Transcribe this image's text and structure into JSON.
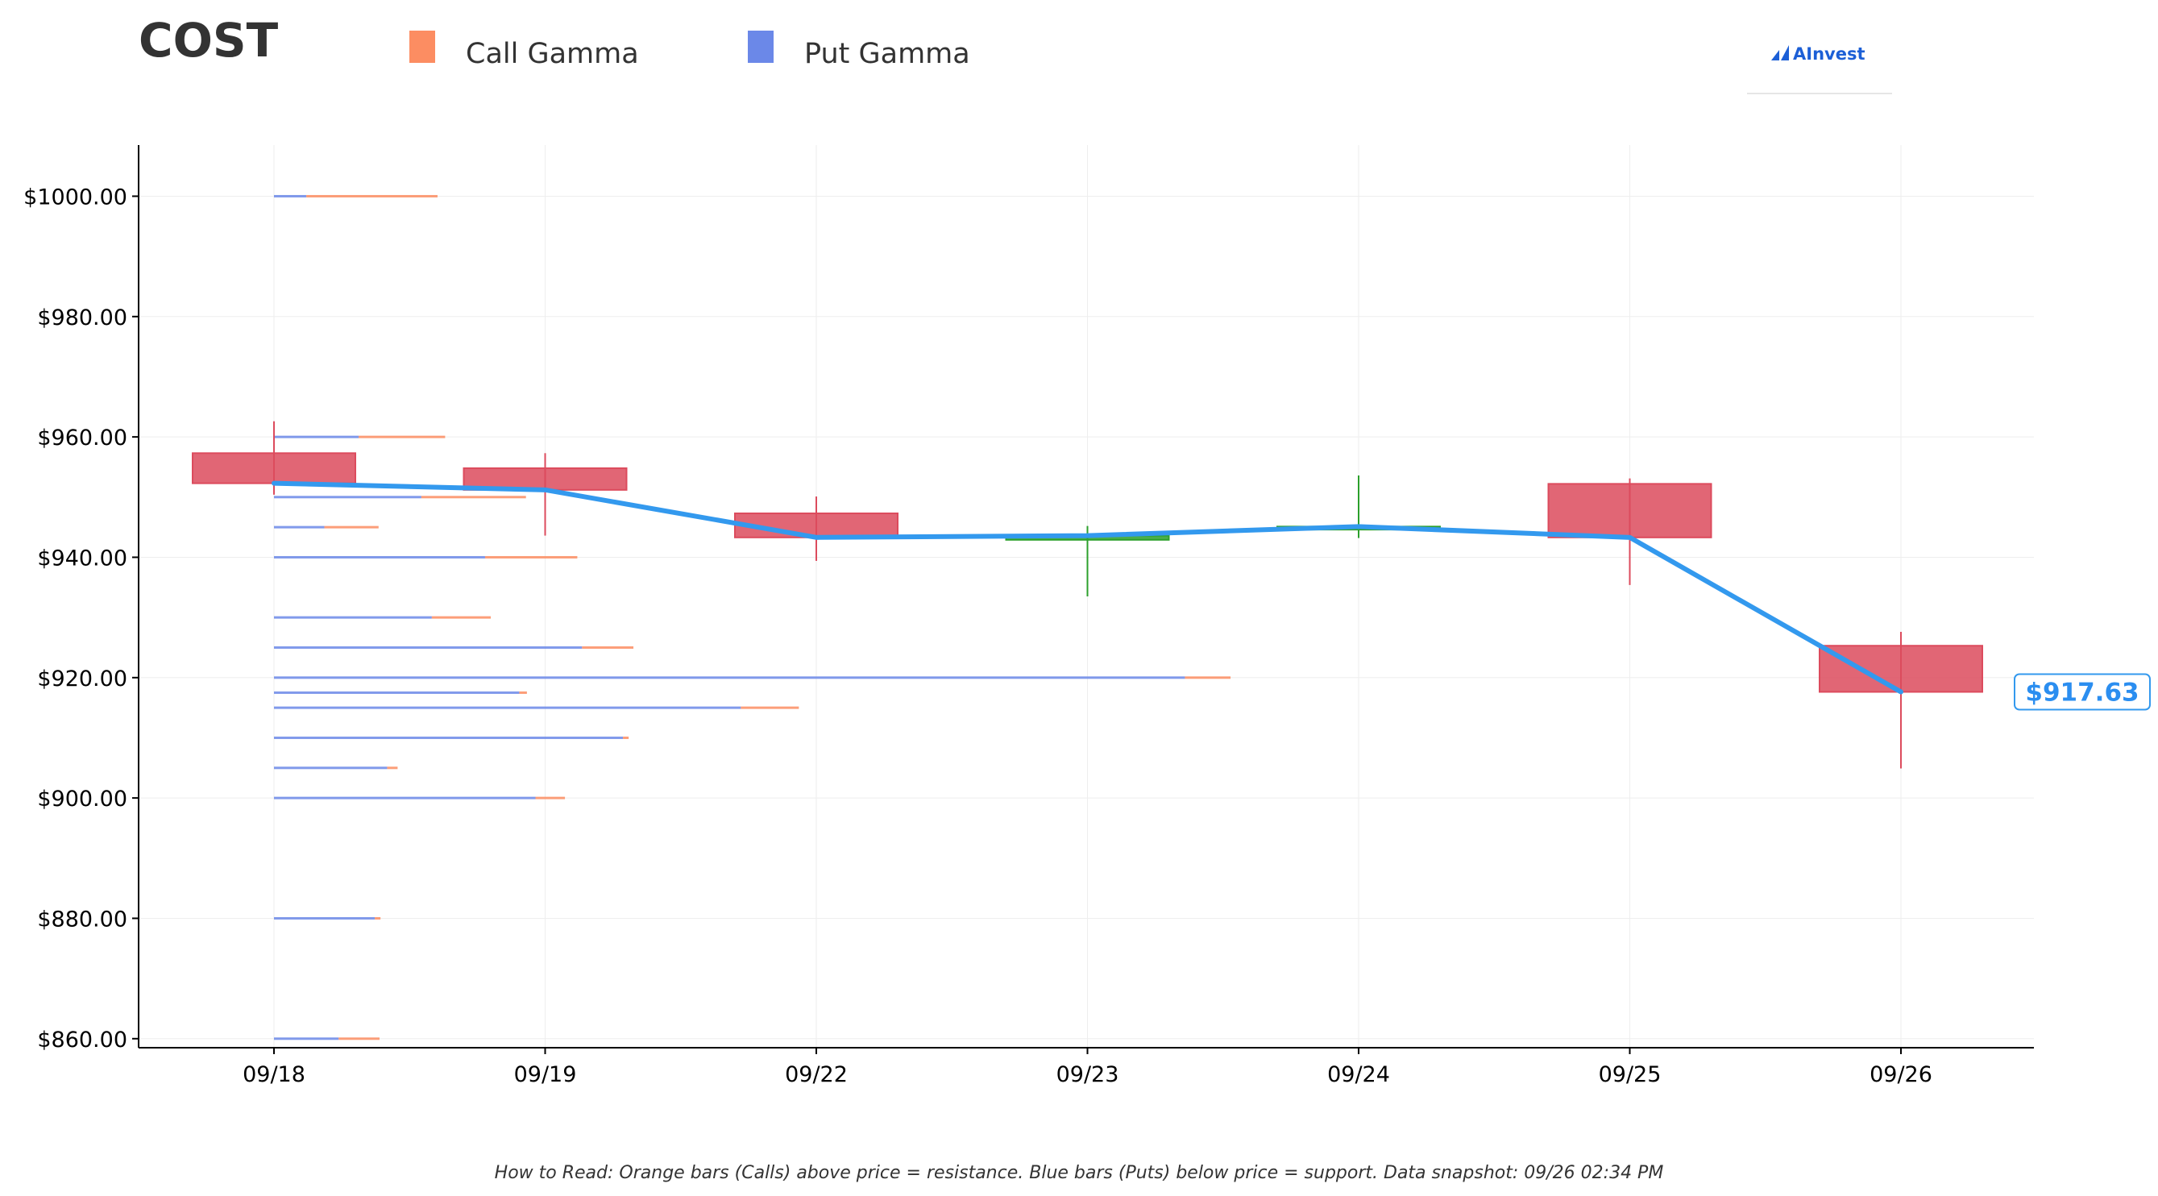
{
  "ticker": "COST",
  "legend": {
    "call_label": "Call Gamma",
    "put_label": "Put Gamma"
  },
  "logo_text": "AInvest",
  "colors": {
    "call": "#fc8d62",
    "put": "#6b88e8",
    "candle_down": "#dc4b5d",
    "candle_up": "#2ca02c",
    "price_line": "#3399ee",
    "price_label": "#2b8ef0",
    "axis": "#000000",
    "grid": "#eeeeee"
  },
  "current_price_label": "$917.63",
  "footnote": "How to Read: Orange bars (Calls) above price = resistance. Blue bars (Puts) below price = support. Data snapshot: 09/26 02:34 PM",
  "chart_data": {
    "type": "candlestick",
    "title": "COST",
    "categories": [
      "09/18",
      "09/19",
      "09/22",
      "09/23",
      "09/24",
      "09/25",
      "09/26"
    ],
    "ylim": [
      858.5,
      1008.5
    ],
    "yticks": [
      860,
      880,
      900,
      920,
      940,
      960,
      980,
      1000
    ],
    "ytick_labels": [
      "$860.00",
      "$880.00",
      "$900.00",
      "$920.00",
      "$940.00",
      "$960.00",
      "$980.00",
      "$1000.00"
    ],
    "grid": true,
    "legend_position": "top",
    "candles": [
      {
        "date": "09/18",
        "open": 957.3,
        "close": 952.3,
        "high": 962.6,
        "low": 950.4
      },
      {
        "date": "09/19",
        "open": 954.8,
        "close": 951.2,
        "high": 957.3,
        "low": 943.6
      },
      {
        "date": "09/22",
        "open": 947.3,
        "close": 943.3,
        "high": 950.1,
        "low": 939.4
      },
      {
        "date": "09/23",
        "open": 942.9,
        "close": 943.6,
        "high": 945.2,
        "low": 933.5
      },
      {
        "date": "09/24",
        "open": 944.6,
        "close": 945.1,
        "high": 953.6,
        "low": 943.2
      },
      {
        "date": "09/25",
        "open": 952.2,
        "close": 943.3,
        "high": 953.1,
        "low": 935.4
      },
      {
        "date": "09/26",
        "open": 925.3,
        "close": 917.63,
        "high": 927.6,
        "low": 904.9
      }
    ],
    "close_line": [
      952.3,
      951.2,
      943.3,
      943.6,
      945.1,
      943.3,
      917.63
    ],
    "gamma_exposure": {
      "strike_unit": "USD",
      "value_unit": "relative (share of max total)",
      "levels": [
        {
          "strike": 1000,
          "put": 0.034,
          "call": 0.138
        },
        {
          "strike": 960,
          "put": 0.089,
          "call": 0.091
        },
        {
          "strike": 950,
          "put": 0.155,
          "call": 0.11
        },
        {
          "strike": 945,
          "put": 0.053,
          "call": 0.057
        },
        {
          "strike": 940,
          "put": 0.222,
          "call": 0.097
        },
        {
          "strike": 930,
          "put": 0.166,
          "call": 0.062
        },
        {
          "strike": 925,
          "put": 0.324,
          "call": 0.054
        },
        {
          "strike": 920,
          "put": 0.958,
          "call": 0.048
        },
        {
          "strike": 917.5,
          "put": 0.258,
          "call": 0.008
        },
        {
          "strike": 915,
          "put": 0.491,
          "call": 0.061
        },
        {
          "strike": 910,
          "put": 0.367,
          "call": 0.006
        },
        {
          "strike": 905,
          "put": 0.119,
          "call": 0.011
        },
        {
          "strike": 900,
          "put": 0.275,
          "call": 0.031
        },
        {
          "strike": 880,
          "put": 0.106,
          "call": 0.006
        },
        {
          "strike": 860,
          "put": 0.068,
          "call": 0.043
        }
      ]
    }
  }
}
